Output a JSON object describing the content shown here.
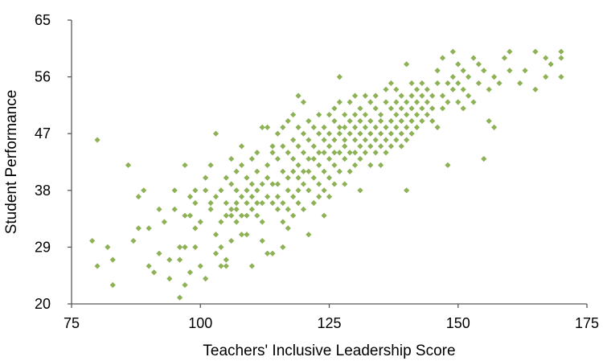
{
  "chart_data": {
    "type": "scatter",
    "title": "",
    "xlabel": "Teachers' Inclusive Leadership Score",
    "ylabel": "Student Performance",
    "xlim": [
      75,
      175
    ],
    "ylim": [
      20,
      65
    ],
    "xticks": [
      "75",
      "100",
      "125",
      "150",
      "175"
    ],
    "yticks": [
      "20",
      "29",
      "38",
      "47",
      "56",
      "65"
    ],
    "grid": false,
    "legend": "none",
    "marker": "diamond",
    "marker_color": "#8DB256",
    "series": [
      {
        "points": [
          [
            79,
            30
          ],
          [
            80,
            26
          ],
          [
            80,
            46
          ],
          [
            82,
            29
          ],
          [
            83,
            27
          ],
          [
            83,
            23
          ],
          [
            86,
            42
          ],
          [
            87,
            30
          ],
          [
            88,
            37
          ],
          [
            88,
            32
          ],
          [
            89,
            38
          ],
          [
            90,
            32
          ],
          [
            90,
            26
          ],
          [
            91,
            25
          ],
          [
            92,
            28
          ],
          [
            92,
            35
          ],
          [
            93,
            33
          ],
          [
            94,
            27
          ],
          [
            94,
            24
          ],
          [
            95,
            35
          ],
          [
            95,
            38
          ],
          [
            96,
            21
          ],
          [
            96,
            27
          ],
          [
            96,
            29
          ],
          [
            97,
            29
          ],
          [
            97,
            23
          ],
          [
            97,
            34
          ],
          [
            97,
            42
          ],
          [
            98,
            25
          ],
          [
            98,
            37
          ],
          [
            98,
            34
          ],
          [
            99,
            32
          ],
          [
            99,
            38
          ],
          [
            99,
            36
          ],
          [
            99,
            29
          ],
          [
            100,
            33
          ],
          [
            100,
            26
          ],
          [
            101,
            38
          ],
          [
            101,
            24
          ],
          [
            101,
            40
          ],
          [
            102,
            42
          ],
          [
            102,
            36
          ],
          [
            102,
            35
          ],
          [
            103,
            47
          ],
          [
            103,
            28
          ],
          [
            103,
            31
          ],
          [
            103,
            37
          ],
          [
            104,
            33
          ],
          [
            104,
            29
          ],
          [
            104,
            26
          ],
          [
            104,
            38
          ],
          [
            105,
            36
          ],
          [
            105,
            40
          ],
          [
            105,
            26
          ],
          [
            105,
            34
          ],
          [
            105,
            27
          ],
          [
            106,
            39
          ],
          [
            106,
            35
          ],
          [
            106,
            43
          ],
          [
            106,
            34
          ],
          [
            106,
            30
          ],
          [
            107,
            35
          ],
          [
            107,
            33
          ],
          [
            107,
            38
          ],
          [
            107,
            41
          ],
          [
            107,
            36
          ],
          [
            108,
            45
          ],
          [
            108,
            37
          ],
          [
            108,
            42
          ],
          [
            108,
            34
          ],
          [
            108,
            31
          ],
          [
            109,
            38
          ],
          [
            109,
            36
          ],
          [
            109,
            34
          ],
          [
            109,
            40
          ],
          [
            109,
            31
          ],
          [
            110,
            35
          ],
          [
            110,
            37
          ],
          [
            110,
            39
          ],
          [
            110,
            43
          ],
          [
            110,
            26
          ],
          [
            111,
            38
          ],
          [
            111,
            41
          ],
          [
            111,
            44
          ],
          [
            111,
            34
          ],
          [
            111,
            36
          ],
          [
            112,
            48
          ],
          [
            112,
            39
          ],
          [
            112,
            36
          ],
          [
            112,
            33
          ],
          [
            112,
            30
          ],
          [
            113,
            37
          ],
          [
            113,
            48
          ],
          [
            113,
            42
          ],
          [
            113,
            40
          ],
          [
            113,
            28
          ],
          [
            114,
            36
          ],
          [
            114,
            44
          ],
          [
            114,
            39
          ],
          [
            114,
            45
          ],
          [
            114,
            28
          ],
          [
            115,
            39
          ],
          [
            115,
            43
          ],
          [
            115,
            47
          ],
          [
            115,
            35
          ],
          [
            115,
            37
          ],
          [
            116,
            48
          ],
          [
            116,
            36
          ],
          [
            116,
            41
          ],
          [
            116,
            33
          ],
          [
            116,
            45
          ],
          [
            116,
            29
          ],
          [
            117,
            40
          ],
          [
            117,
            44
          ],
          [
            117,
            38
          ],
          [
            117,
            49
          ],
          [
            117,
            35
          ],
          [
            117,
            32
          ],
          [
            118,
            41
          ],
          [
            118,
            46
          ],
          [
            118,
            37
          ],
          [
            118,
            43
          ],
          [
            118,
            50
          ],
          [
            118,
            34
          ],
          [
            119,
            42
          ],
          [
            119,
            38
          ],
          [
            119,
            45
          ],
          [
            119,
            48
          ],
          [
            119,
            40
          ],
          [
            119,
            53
          ],
          [
            119,
            36
          ],
          [
            120,
            39
          ],
          [
            120,
            44
          ],
          [
            120,
            47
          ],
          [
            120,
            41
          ],
          [
            120,
            52
          ],
          [
            120,
            35
          ],
          [
            121,
            43
          ],
          [
            121,
            46
          ],
          [
            121,
            38
          ],
          [
            121,
            49
          ],
          [
            121,
            41
          ],
          [
            121,
            31
          ],
          [
            122,
            45
          ],
          [
            122,
            40
          ],
          [
            122,
            48
          ],
          [
            122,
            36
          ],
          [
            122,
            43
          ],
          [
            123,
            44
          ],
          [
            123,
            39
          ],
          [
            123,
            47
          ],
          [
            123,
            42
          ],
          [
            123,
            50
          ],
          [
            123,
            37
          ],
          [
            124,
            46
          ],
          [
            124,
            41
          ],
          [
            124,
            48
          ],
          [
            124,
            38
          ],
          [
            124,
            44
          ],
          [
            124,
            34
          ],
          [
            125,
            43
          ],
          [
            125,
            47
          ],
          [
            125,
            50
          ],
          [
            125,
            40
          ],
          [
            125,
            45
          ],
          [
            125,
            37
          ],
          [
            126,
            46
          ],
          [
            126,
            49
          ],
          [
            126,
            42
          ],
          [
            126,
            44
          ],
          [
            126,
            51
          ],
          [
            126,
            39
          ],
          [
            127,
            47
          ],
          [
            127,
            56
          ],
          [
            127,
            44
          ],
          [
            127,
            48
          ],
          [
            127,
            41
          ],
          [
            127,
            52
          ],
          [
            128,
            46
          ],
          [
            128,
            50
          ],
          [
            128,
            43
          ],
          [
            128,
            48
          ],
          [
            128,
            39
          ],
          [
            128,
            45
          ],
          [
            129,
            49
          ],
          [
            129,
            47
          ],
          [
            129,
            52
          ],
          [
            129,
            44
          ],
          [
            129,
            41
          ],
          [
            130,
            48
          ],
          [
            130,
            46
          ],
          [
            130,
            50
          ],
          [
            130,
            53
          ],
          [
            130,
            44
          ],
          [
            130,
            42
          ],
          [
            131,
            49
          ],
          [
            131,
            47
          ],
          [
            131,
            45
          ],
          [
            131,
            51
          ],
          [
            131,
            38
          ],
          [
            131,
            43
          ],
          [
            132,
            48
          ],
          [
            132,
            46
          ],
          [
            132,
            53
          ],
          [
            132,
            50
          ],
          [
            132,
            44
          ],
          [
            133,
            47
          ],
          [
            133,
            49
          ],
          [
            133,
            52
          ],
          [
            133,
            45
          ],
          [
            133,
            42
          ],
          [
            134,
            48
          ],
          [
            134,
            46
          ],
          [
            134,
            51
          ],
          [
            134,
            53
          ],
          [
            134,
            44
          ],
          [
            135,
            49
          ],
          [
            135,
            47
          ],
          [
            135,
            50
          ],
          [
            135,
            45
          ],
          [
            135,
            42
          ],
          [
            136,
            48
          ],
          [
            136,
            52
          ],
          [
            136,
            46
          ],
          [
            136,
            54
          ],
          [
            136,
            44
          ],
          [
            137,
            49
          ],
          [
            137,
            51
          ],
          [
            137,
            47
          ],
          [
            137,
            55
          ],
          [
            137,
            45
          ],
          [
            138,
            48
          ],
          [
            138,
            52
          ],
          [
            138,
            50
          ],
          [
            138,
            46
          ],
          [
            138,
            54
          ],
          [
            139,
            49
          ],
          [
            139,
            53
          ],
          [
            139,
            47
          ],
          [
            139,
            51
          ],
          [
            139,
            45
          ],
          [
            140,
            50
          ],
          [
            140,
            58
          ],
          [
            140,
            48
          ],
          [
            140,
            52
          ],
          [
            140,
            46
          ],
          [
            140,
            38
          ],
          [
            141,
            49
          ],
          [
            141,
            53
          ],
          [
            141,
            51
          ],
          [
            141,
            47
          ],
          [
            141,
            55
          ],
          [
            142,
            50
          ],
          [
            142,
            54
          ],
          [
            142,
            48
          ],
          [
            142,
            52
          ],
          [
            143,
            51
          ],
          [
            143,
            49
          ],
          [
            143,
            55
          ],
          [
            143,
            53
          ],
          [
            144,
            50
          ],
          [
            144,
            54
          ],
          [
            144,
            52
          ],
          [
            145,
            49
          ],
          [
            145,
            53
          ],
          [
            145,
            51
          ],
          [
            146,
            55
          ],
          [
            146,
            57
          ],
          [
            146,
            48
          ],
          [
            147,
            53
          ],
          [
            147,
            51
          ],
          [
            147,
            59
          ],
          [
            148,
            55
          ],
          [
            148,
            52
          ],
          [
            148,
            42
          ],
          [
            149,
            60
          ],
          [
            149,
            54
          ],
          [
            149,
            56
          ],
          [
            150,
            55
          ],
          [
            150,
            52
          ],
          [
            150,
            58
          ],
          [
            151,
            54
          ],
          [
            151,
            57
          ],
          [
            151,
            51
          ],
          [
            152,
            53
          ],
          [
            152,
            56
          ],
          [
            153,
            59
          ],
          [
            153,
            52
          ],
          [
            154,
            58
          ],
          [
            154,
            55
          ],
          [
            155,
            57
          ],
          [
            155,
            43
          ],
          [
            156,
            49
          ],
          [
            156,
            54
          ],
          [
            157,
            48
          ],
          [
            157,
            56
          ],
          [
            158,
            55
          ],
          [
            159,
            59
          ],
          [
            160,
            57
          ],
          [
            160,
            60
          ],
          [
            162,
            55
          ],
          [
            163,
            57
          ],
          [
            165,
            54
          ],
          [
            165,
            60
          ],
          [
            167,
            56
          ],
          [
            167,
            59
          ],
          [
            168,
            58
          ],
          [
            170,
            60
          ],
          [
            170,
            59
          ],
          [
            170,
            56
          ]
        ]
      }
    ]
  }
}
